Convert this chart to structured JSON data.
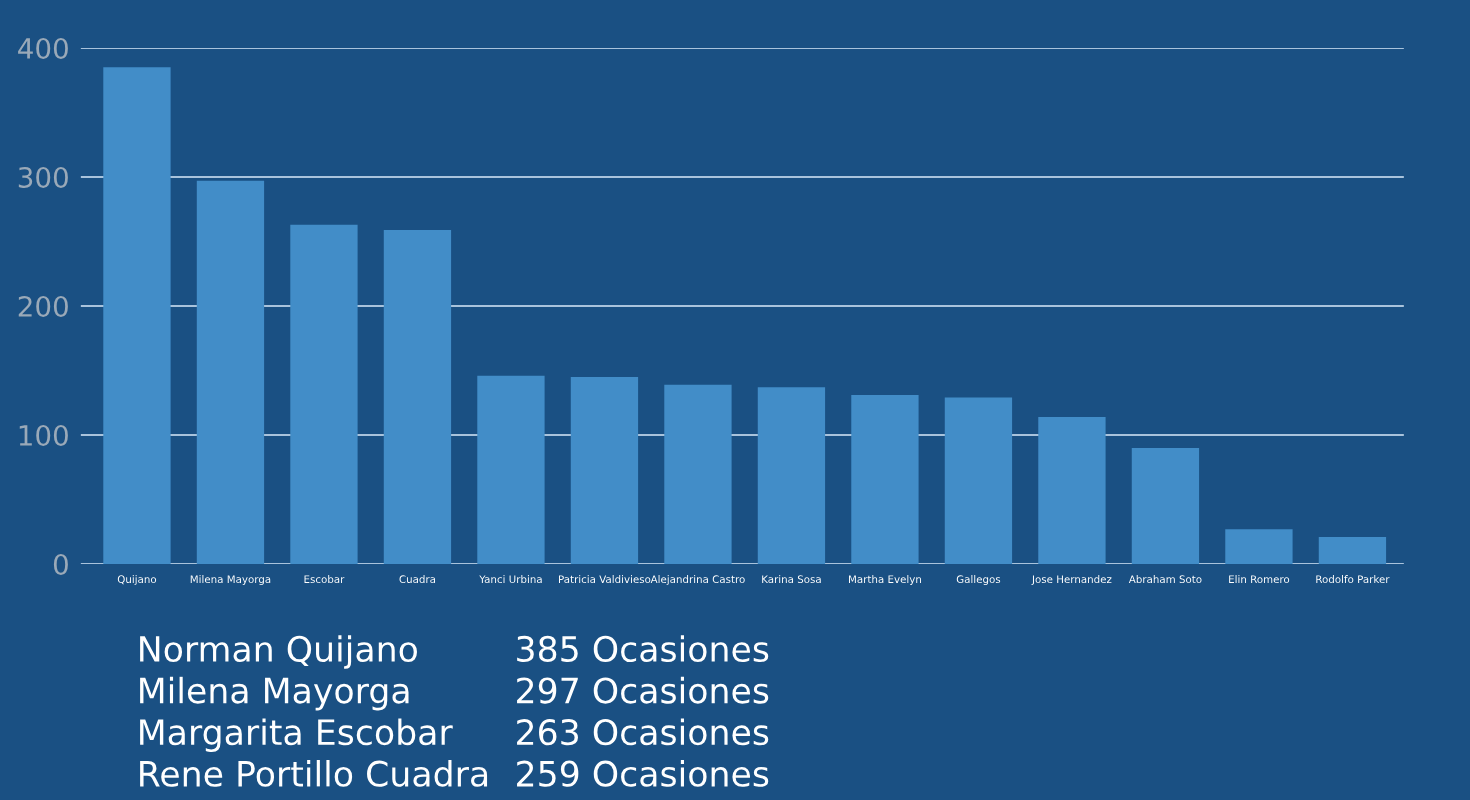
{
  "chart_data": {
    "type": "bar",
    "categories": [
      "Quijano",
      "Milena Mayorga",
      "Escobar",
      "Cuadra",
      "Yanci Urbina",
      "Patricia Valdivieso",
      "Alejandrina Castro",
      "Karina Sosa",
      "Martha Evelyn",
      "Gallegos",
      "Jose Hernandez",
      "Abraham Soto",
      "Elin Romero",
      "Rodolfo Parker"
    ],
    "values": [
      385,
      297,
      263,
      259,
      146,
      145,
      139,
      137,
      131,
      129,
      114,
      90,
      27,
      21
    ],
    "color": "#428dc8",
    "ylim": [
      0,
      400
    ],
    "yticks": [
      0,
      100,
      200,
      300,
      400
    ],
    "grid": "y",
    "annotations": [
      "Norman Quijano",
      "385 Ocasiones",
      "Milena Mayorga",
      "297 Ocasiones",
      "Margarita Escobar",
      "263 Ocasiones",
      "Rene Portillo Cuadra",
      "259 Ocasiones"
    ]
  }
}
